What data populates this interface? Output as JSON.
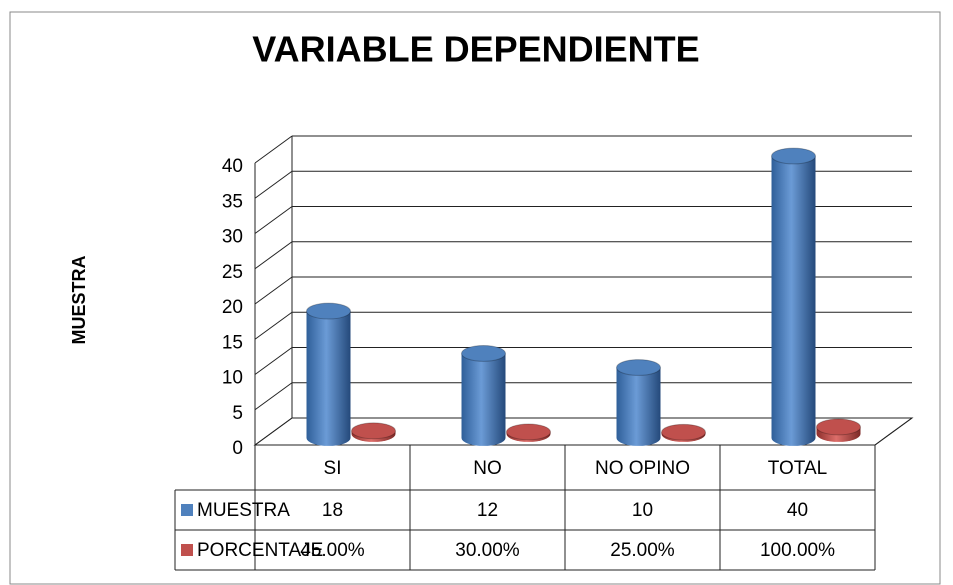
{
  "chart_data": {
    "type": "bar3d",
    "title": "VARIABLE DEPENDIENTE",
    "ylabel": "MUESTRA",
    "categories": [
      "SI",
      "NO",
      "NO OPINO",
      "TOTAL"
    ],
    "series": [
      {
        "name": "MUESTRA",
        "color": "#4f81bd",
        "values": [
          18,
          12,
          10,
          40
        ]
      },
      {
        "name": "PORCENTAJE",
        "color": "#c0504d",
        "values": [
          0.45,
          0.3,
          0.25,
          1.0
        ],
        "value_labels": [
          "45.00%",
          "30.00%",
          "25.00%",
          "100.00%"
        ]
      }
    ],
    "ylim": [
      0,
      40
    ],
    "yticks": [
      0,
      5,
      10,
      15,
      20,
      25,
      30,
      35,
      40
    ],
    "grid": true,
    "data_table": true
  }
}
